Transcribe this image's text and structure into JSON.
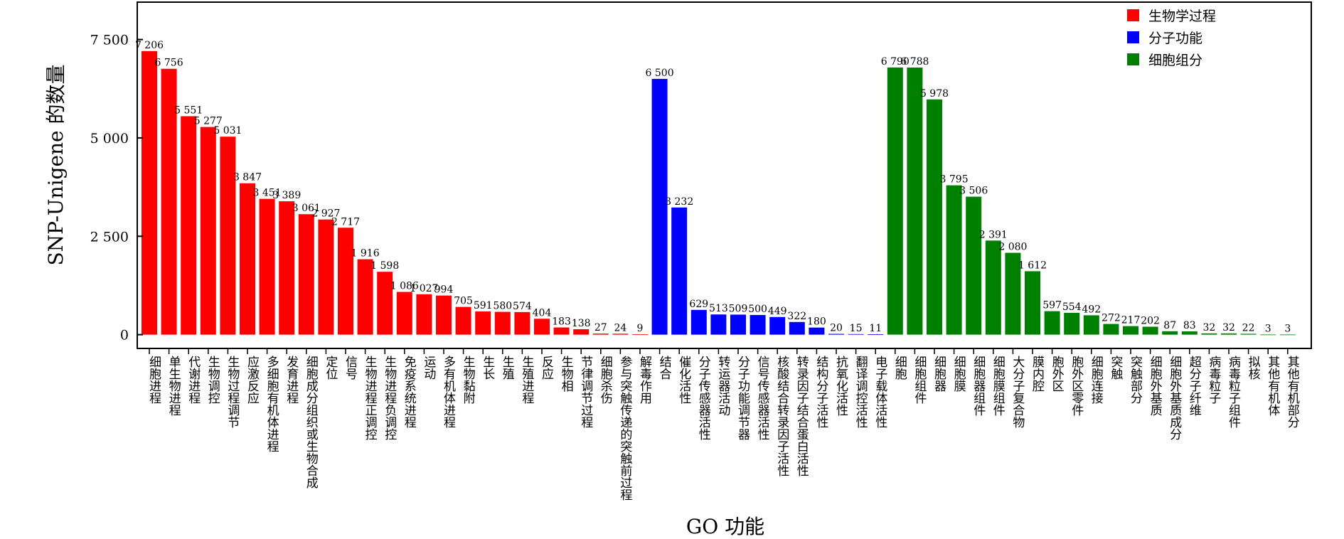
{
  "chart_data": {
    "type": "bar",
    "xlabel": "GO 功能",
    "ylabel": "SNP-Unigene 的数量",
    "ylim": [
      -350,
      8450
    ],
    "yticks": [
      0,
      2500,
      5000,
      7500
    ],
    "ytick_labels": [
      "0",
      "2 500",
      "5 000",
      "7 500"
    ],
    "legend_position": "top-right",
    "series": [
      {
        "name": "生物学过程",
        "color": "#ff0000",
        "categories": [
          "细胞进程",
          "单生物进程",
          "代谢进程",
          "生物调控",
          "生物过程调节",
          "应激反应",
          "多细胞有机体进程",
          "发育进程",
          "细胞成分组织或生物合成",
          "定位",
          "信号",
          "生物进程正调控",
          "生物进程负调控",
          "免疫系统进程",
          "运动",
          "多有机体进程",
          "生物黏附",
          "生长",
          "生殖",
          "生殖进程",
          "反应",
          "生物相",
          "节律调节过程",
          "细胞杀伤",
          "参与突触传递的突触前过程",
          "解毒作用"
        ],
        "values": [
          7206,
          6756,
          5551,
          5277,
          5031,
          3847,
          3451,
          3389,
          3061,
          2927,
          2717,
          1916,
          1598,
          1086,
          1027,
          994,
          705,
          591,
          580,
          574,
          404,
          183,
          138,
          27,
          24,
          9
        ],
        "value_labels": [
          "7 206",
          "6 756",
          "5 551",
          "5 277",
          "5 031",
          "3 847",
          "3 451",
          "3 389",
          "3 061",
          "2 927",
          "2 717",
          "1 916",
          "1 598",
          "1 086",
          "1 027",
          "994",
          "705",
          "591",
          "580",
          "574",
          "404",
          "183",
          "138",
          "27",
          "24",
          "9"
        ]
      },
      {
        "name": "分子功能",
        "color": "#0000ff",
        "categories": [
          "结合",
          "催化活性",
          "分子传感器活性",
          "转运器活动",
          "分子功能调节器",
          "信号传感器活性",
          "核酸结合转录因子活性",
          "转录因子结合蛋白活性",
          "结构分子活性",
          "抗氧化活性",
          "翻译调控活性",
          "电子载体活性"
        ],
        "values": [
          6500,
          3232,
          629,
          513,
          509,
          500,
          449,
          322,
          180,
          20,
          15,
          11
        ],
        "value_labels": [
          "6 500",
          "3 232",
          "629",
          "513",
          "509",
          "500",
          "449",
          "322",
          "180",
          "20",
          "15",
          "11"
        ]
      },
      {
        "name": "细胞组分",
        "color": "#008000",
        "categories": [
          "细胞",
          "细胞组件",
          "细胞器",
          "细胞膜",
          "细胞器组件",
          "细胞膜组件",
          "大分子复合物",
          "膜内腔",
          "胞外区",
          "胞外区零件",
          "细胞连接",
          "突触",
          "突触部分",
          "细胞外基质",
          "细胞外基质成分",
          "超分子纤维",
          "病毒粒子",
          "病毒粒子组件",
          "拟核",
          "其他有机体",
          "其他有机部分"
        ],
        "values": [
          6790,
          6788,
          5978,
          3795,
          3506,
          2391,
          2080,
          1612,
          597,
          554,
          492,
          272,
          217,
          202,
          87,
          83,
          32,
          32,
          22,
          3,
          3
        ],
        "value_labels": [
          "6 790",
          "6 788",
          "5 978",
          "3 795",
          "3 506",
          "2 391",
          "2 080",
          "1 612",
          "597",
          "554",
          "492",
          "272",
          "217",
          "202",
          "87",
          "83",
          "32",
          "32",
          "22",
          "3",
          "3"
        ]
      }
    ]
  }
}
